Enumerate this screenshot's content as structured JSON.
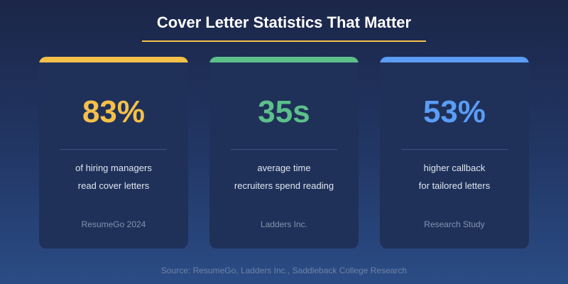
{
  "title": "Cover Letter Statistics That Matter",
  "cards": [
    {
      "stat": "83%",
      "lines": [
        "of hiring managers",
        "read cover letters"
      ],
      "source": "ResumeGo 2024",
      "color": "#f5c04a"
    },
    {
      "stat": "35s",
      "lines": [
        "average time",
        "recruiters spend reading"
      ],
      "source": "Ladders Inc.",
      "color": "#5cc08a"
    },
    {
      "stat": "53%",
      "lines": [
        "higher callback",
        "for tailored letters"
      ],
      "source": "Research Study",
      "color": "#5b9cf5"
    }
  ],
  "footer": "Source: ResumeGo, Ladders Inc., Saddleback College Research"
}
